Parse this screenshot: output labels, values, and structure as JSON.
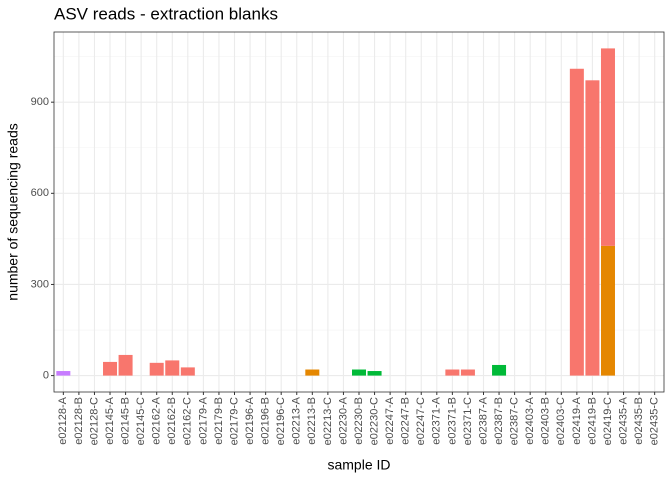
{
  "chart_data": {
    "type": "bar",
    "stacked": true,
    "title": "ASV reads - extraction blanks",
    "x_label": "sample ID",
    "y_label": "number of sequencing reads",
    "categories": [
      "e02128-A",
      "e02128-B",
      "e02128-C",
      "e02145-A",
      "e02145-B",
      "e02145-C",
      "e02162-A",
      "e02162-B",
      "e02162-C",
      "e02179-A",
      "e02179-B",
      "e02179-C",
      "e02196-A",
      "e02196-B",
      "e02196-C",
      "e02213-A",
      "e02213-B",
      "e02213-C",
      "e02230-A",
      "e02230-B",
      "e02230-C",
      "e02247-A",
      "e02247-B",
      "e02247-C",
      "e02371-A",
      "e02371-B",
      "e02371-C",
      "e02387-A",
      "e02387-B",
      "e02387-C",
      "e02403-A",
      "e02403-B",
      "e02403-C",
      "e02419-A",
      "e02419-B",
      "e02419-C",
      "e02435-A",
      "e02435-B",
      "e02435-C"
    ],
    "series": [
      {
        "color": "#E58700",
        "values": [
          null,
          null,
          null,
          null,
          null,
          null,
          null,
          null,
          null,
          null,
          null,
          null,
          null,
          null,
          null,
          null,
          20,
          null,
          null,
          null,
          null,
          null,
          null,
          null,
          null,
          null,
          null,
          null,
          null,
          null,
          null,
          null,
          null,
          null,
          null,
          427,
          null,
          null,
          null
        ]
      },
      {
        "color": "#F8766D",
        "values": [
          null,
          null,
          null,
          45,
          68,
          null,
          42,
          50,
          27,
          null,
          null,
          null,
          null,
          null,
          null,
          null,
          null,
          null,
          null,
          null,
          null,
          null,
          null,
          null,
          null,
          20,
          20,
          null,
          null,
          null,
          null,
          null,
          null,
          1010,
          972,
          650,
          null,
          null,
          null
        ]
      },
      {
        "color": "#00BA38",
        "values": [
          null,
          null,
          null,
          null,
          null,
          null,
          null,
          null,
          null,
          null,
          null,
          null,
          null,
          null,
          null,
          null,
          null,
          null,
          null,
          20,
          15,
          null,
          null,
          null,
          null,
          null,
          null,
          null,
          35,
          null,
          null,
          null,
          null,
          null,
          null,
          null,
          null,
          null,
          null
        ]
      },
      {
        "color": "#C77CFF",
        "values": [
          15,
          null,
          null,
          null,
          null,
          null,
          null,
          null,
          null,
          null,
          null,
          null,
          null,
          null,
          null,
          null,
          null,
          null,
          null,
          null,
          null,
          null,
          null,
          null,
          null,
          null,
          null,
          null,
          null,
          null,
          null,
          null,
          null,
          null,
          null,
          null,
          null,
          null,
          null
        ]
      }
    ],
    "ylim": [
      -54,
      1131
    ],
    "yticks": [
      0,
      300,
      600,
      900
    ],
    "yminor_ticks": [
      150,
      450,
      750,
      1050
    ],
    "grid": true
  }
}
